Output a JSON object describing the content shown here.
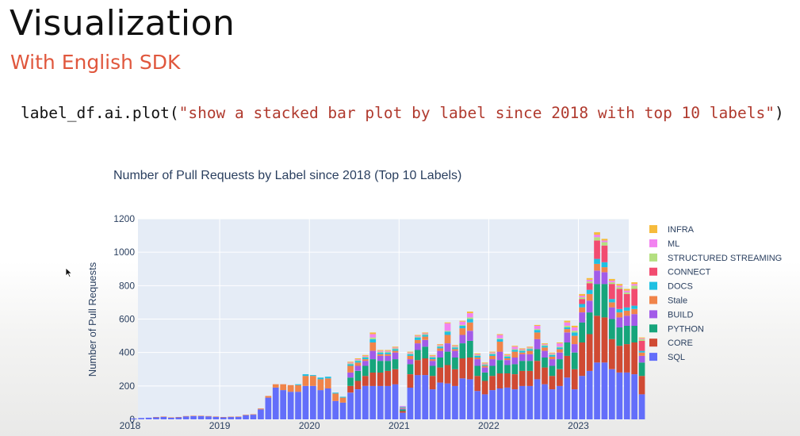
{
  "slide": {
    "title": "Visualization",
    "subtitle": "With English SDK",
    "code_prefix": "label_df.ai.plot(",
    "code_string": "\"show a stacked bar plot by label since 2018 with top 10 labels\"",
    "code_suffix": ")"
  },
  "colors": {
    "title": "#111111",
    "subtitle": "#e0573d",
    "code_string": "#b03a2e",
    "plot_bg": "#e5ecf6",
    "grid": "#ffffff",
    "axis_text": "#2a3f5f"
  },
  "chart_data": {
    "type": "bar",
    "stacked": true,
    "title": "Number of Pull Requests by Label since 2018 (Top 10 Labels)",
    "ylabel": "Number of Pull Requests",
    "xlabel": "",
    "ylim": [
      0,
      1200
    ],
    "yticks": [
      0,
      200,
      400,
      600,
      800,
      1000,
      1200
    ],
    "xticks": [
      "2018",
      "2019",
      "2020",
      "2021",
      "2022",
      "2023"
    ],
    "grid": true,
    "legend_position": "right",
    "series": [
      {
        "name": "SQL",
        "color": "#636efa"
      },
      {
        "name": "CORE",
        "color": "#d04a33"
      },
      {
        "name": "PYTHON",
        "color": "#16a57b"
      },
      {
        "name": "BUILD",
        "color": "#a25be8"
      },
      {
        "name": "Stale",
        "color": "#f0844a"
      },
      {
        "name": "DOCS",
        "color": "#1fc0e2"
      },
      {
        "name": "CONNECT",
        "color": "#f24b70"
      },
      {
        "name": "STRUCTURED STREAMING",
        "color": "#b4df80"
      },
      {
        "name": "ML",
        "color": "#f283f0"
      },
      {
        "name": "INFRA",
        "color": "#f6bb3c"
      }
    ],
    "bars": [
      {
        "month": "2018-01",
        "values": [
          5,
          0,
          0,
          0,
          0,
          0,
          0,
          0,
          0,
          0
        ]
      },
      {
        "month": "2018-02",
        "values": [
          8,
          0,
          0,
          0,
          0,
          0,
          0,
          0,
          0,
          0
        ]
      },
      {
        "month": "2018-03",
        "values": [
          10,
          0,
          0,
          0,
          0,
          0,
          0,
          0,
          0,
          0
        ]
      },
      {
        "month": "2018-04",
        "values": [
          12,
          0,
          0,
          0,
          2,
          0,
          0,
          0,
          0,
          0
        ]
      },
      {
        "month": "2018-05",
        "values": [
          15,
          0,
          0,
          0,
          2,
          0,
          0,
          0,
          0,
          0
        ]
      },
      {
        "month": "2018-06",
        "values": [
          10,
          0,
          0,
          0,
          2,
          0,
          0,
          0,
          0,
          0
        ]
      },
      {
        "month": "2018-07",
        "values": [
          12,
          0,
          0,
          0,
          2,
          0,
          0,
          0,
          0,
          0
        ]
      },
      {
        "month": "2018-08",
        "values": [
          18,
          0,
          0,
          0,
          2,
          0,
          0,
          0,
          0,
          0
        ]
      },
      {
        "month": "2018-09",
        "values": [
          20,
          0,
          0,
          0,
          2,
          0,
          0,
          0,
          0,
          0
        ]
      },
      {
        "month": "2018-10",
        "values": [
          20,
          0,
          0,
          0,
          2,
          0,
          0,
          0,
          0,
          0
        ]
      },
      {
        "month": "2018-11",
        "values": [
          18,
          0,
          0,
          0,
          2,
          0,
          0,
          0,
          0,
          0
        ]
      },
      {
        "month": "2018-12",
        "values": [
          15,
          0,
          0,
          0,
          2,
          0,
          0,
          0,
          0,
          0
        ]
      },
      {
        "month": "2019-01",
        "values": [
          12,
          0,
          0,
          0,
          2,
          0,
          0,
          0,
          0,
          0
        ]
      },
      {
        "month": "2019-02",
        "values": [
          14,
          0,
          0,
          0,
          2,
          0,
          0,
          0,
          0,
          0
        ]
      },
      {
        "month": "2019-03",
        "values": [
          15,
          0,
          0,
          0,
          2,
          0,
          0,
          0,
          0,
          0
        ]
      },
      {
        "month": "2019-04",
        "values": [
          25,
          0,
          0,
          0,
          3,
          0,
          0,
          0,
          0,
          0
        ]
      },
      {
        "month": "2019-05",
        "values": [
          28,
          0,
          0,
          0,
          3,
          0,
          0,
          0,
          0,
          0
        ]
      },
      {
        "month": "2019-06",
        "values": [
          60,
          0,
          0,
          0,
          5,
          0,
          0,
          0,
          0,
          0
        ]
      },
      {
        "month": "2019-07",
        "values": [
          130,
          0,
          0,
          0,
          10,
          0,
          0,
          0,
          0,
          0
        ]
      },
      {
        "month": "2019-08",
        "values": [
          190,
          0,
          0,
          0,
          20,
          0,
          0,
          0,
          0,
          0
        ]
      },
      {
        "month": "2019-09",
        "values": [
          175,
          0,
          0,
          0,
          35,
          0,
          0,
          0,
          0,
          0
        ]
      },
      {
        "month": "2019-10",
        "values": [
          165,
          0,
          0,
          0,
          40,
          0,
          0,
          0,
          0,
          0
        ]
      },
      {
        "month": "2019-11",
        "values": [
          165,
          0,
          0,
          0,
          40,
          5,
          0,
          0,
          0,
          0
        ]
      },
      {
        "month": "2019-12",
        "values": [
          200,
          0,
          0,
          0,
          60,
          10,
          0,
          0,
          0,
          0
        ]
      },
      {
        "month": "2020-01",
        "values": [
          200,
          0,
          0,
          0,
          60,
          5,
          0,
          0,
          0,
          0
        ]
      },
      {
        "month": "2020-02",
        "values": [
          175,
          0,
          0,
          0,
          65,
          10,
          0,
          0,
          0,
          0
        ]
      },
      {
        "month": "2020-03",
        "values": [
          185,
          0,
          0,
          0,
          60,
          10,
          0,
          0,
          0,
          0
        ]
      },
      {
        "month": "2020-04",
        "values": [
          110,
          0,
          0,
          0,
          45,
          5,
          0,
          0,
          0,
          0
        ]
      },
      {
        "month": "2020-05",
        "values": [
          100,
          0,
          0,
          0,
          30,
          5,
          0,
          0,
          0,
          0
        ]
      },
      {
        "month": "2020-06",
        "values": [
          160,
          40,
          50,
          30,
          40,
          10,
          0,
          5,
          5,
          5
        ]
      },
      {
        "month": "2020-07",
        "values": [
          180,
          50,
          60,
          30,
          20,
          10,
          0,
          5,
          5,
          5
        ]
      },
      {
        "month": "2020-08",
        "values": [
          200,
          60,
          60,
          30,
          10,
          10,
          0,
          5,
          5,
          5
        ]
      },
      {
        "month": "2020-09",
        "values": [
          200,
          80,
          80,
          50,
          50,
          20,
          0,
          10,
          20,
          10
        ]
      },
      {
        "month": "2020-10",
        "values": [
          200,
          80,
          70,
          30,
          10,
          10,
          0,
          5,
          5,
          5
        ]
      },
      {
        "month": "2020-11",
        "values": [
          200,
          90,
          60,
          30,
          10,
          10,
          0,
          5,
          5,
          5
        ]
      },
      {
        "month": "2020-12",
        "values": [
          210,
          90,
          60,
          40,
          10,
          10,
          0,
          5,
          5,
          5
        ]
      },
      {
        "month": "2021-01",
        "values": [
          40,
          10,
          10,
          5,
          5,
          5,
          0,
          0,
          5,
          0
        ]
      },
      {
        "month": "2021-02",
        "values": [
          190,
          80,
          60,
          30,
          20,
          10,
          0,
          5,
          5,
          5
        ]
      },
      {
        "month": "2021-03",
        "values": [
          265,
          90,
          60,
          40,
          20,
          15,
          0,
          5,
          5,
          5
        ]
      },
      {
        "month": "2021-04",
        "values": [
          265,
          100,
          70,
          40,
          20,
          10,
          0,
          5,
          5,
          5
        ]
      },
      {
        "month": "2021-05",
        "values": [
          180,
          80,
          60,
          30,
          10,
          10,
          0,
          5,
          5,
          5
        ]
      },
      {
        "month": "2021-06",
        "values": [
          220,
          90,
          60,
          40,
          15,
          10,
          0,
          5,
          5,
          5
        ]
      },
      {
        "month": "2021-07",
        "values": [
          215,
          110,
          80,
          50,
          50,
          20,
          0,
          5,
          45,
          5
        ]
      },
      {
        "month": "2021-08",
        "values": [
          200,
          100,
          70,
          40,
          10,
          10,
          0,
          5,
          5,
          5
        ]
      },
      {
        "month": "2021-09",
        "values": [
          245,
          120,
          90,
          50,
          40,
          15,
          0,
          5,
          20,
          5
        ]
      },
      {
        "month": "2021-10",
        "values": [
          240,
          130,
          100,
          60,
          50,
          20,
          0,
          10,
          25,
          10
        ]
      },
      {
        "month": "2021-11",
        "values": [
          170,
          90,
          60,
          40,
          10,
          10,
          0,
          5,
          5,
          5
        ]
      },
      {
        "month": "2021-12",
        "values": [
          150,
          80,
          50,
          30,
          10,
          5,
          0,
          5,
          5,
          5
        ]
      },
      {
        "month": "2022-01",
        "values": [
          175,
          85,
          60,
          40,
          20,
          10,
          0,
          5,
          5,
          5
        ]
      },
      {
        "month": "2022-02",
        "values": [
          185,
          90,
          80,
          50,
          60,
          15,
          0,
          5,
          20,
          5
        ]
      },
      {
        "month": "2022-03",
        "values": [
          190,
          85,
          50,
          30,
          10,
          10,
          0,
          5,
          5,
          5
        ]
      },
      {
        "month": "2022-04",
        "values": [
          180,
          90,
          60,
          40,
          35,
          10,
          0,
          5,
          15,
          5
        ]
      },
      {
        "month": "2022-05",
        "values": [
          200,
          90,
          60,
          40,
          10,
          10,
          0,
          5,
          5,
          5
        ]
      },
      {
        "month": "2022-06",
        "values": [
          200,
          90,
          60,
          40,
          20,
          10,
          0,
          5,
          5,
          5
        ]
      },
      {
        "month": "2022-07",
        "values": [
          240,
          110,
          70,
          60,
          40,
          15,
          0,
          5,
          20,
          5
        ]
      },
      {
        "month": "2022-08",
        "values": [
          210,
          100,
          60,
          40,
          20,
          10,
          0,
          5,
          5,
          5
        ]
      },
      {
        "month": "2022-09",
        "values": [
          180,
          80,
          60,
          40,
          15,
          10,
          0,
          5,
          5,
          5
        ]
      },
      {
        "month": "2022-10",
        "values": [
          200,
          100,
          60,
          40,
          20,
          10,
          0,
          5,
          20,
          5
        ]
      },
      {
        "month": "2022-11",
        "values": [
          250,
          130,
          80,
          60,
          20,
          10,
          0,
          10,
          20,
          10
        ]
      },
      {
        "month": "2022-12",
        "values": [
          180,
          120,
          100,
          50,
          50,
          20,
          0,
          10,
          20,
          10
        ]
      },
      {
        "month": "2023-01",
        "values": [
          260,
          200,
          120,
          60,
          30,
          20,
          30,
          10,
          10,
          10
        ]
      },
      {
        "month": "2023-02",
        "values": [
          290,
          220,
          130,
          70,
          40,
          25,
          40,
          10,
          10,
          10
        ]
      },
      {
        "month": "2023-03",
        "values": [
          340,
          280,
          190,
          80,
          40,
          30,
          110,
          20,
          15,
          15
        ]
      },
      {
        "month": "2023-04",
        "values": [
          340,
          270,
          200,
          70,
          30,
          30,
          100,
          20,
          10,
          10
        ]
      },
      {
        "month": "2023-05",
        "values": [
          300,
          180,
          120,
          70,
          30,
          20,
          90,
          10,
          10,
          10
        ]
      },
      {
        "month": "2023-06",
        "values": [
          280,
          160,
          110,
          60,
          30,
          20,
          120,
          10,
          10,
          10
        ]
      },
      {
        "month": "2023-07",
        "values": [
          280,
          170,
          110,
          60,
          30,
          20,
          80,
          10,
          10,
          10
        ]
      },
      {
        "month": "2023-08",
        "values": [
          270,
          190,
          100,
          70,
          30,
          20,
          100,
          20,
          10,
          10
        ]
      },
      {
        "month": "2023-09",
        "values": [
          150,
          110,
          80,
          40,
          20,
          10,
          60,
          10,
          5,
          5
        ]
      }
    ]
  }
}
